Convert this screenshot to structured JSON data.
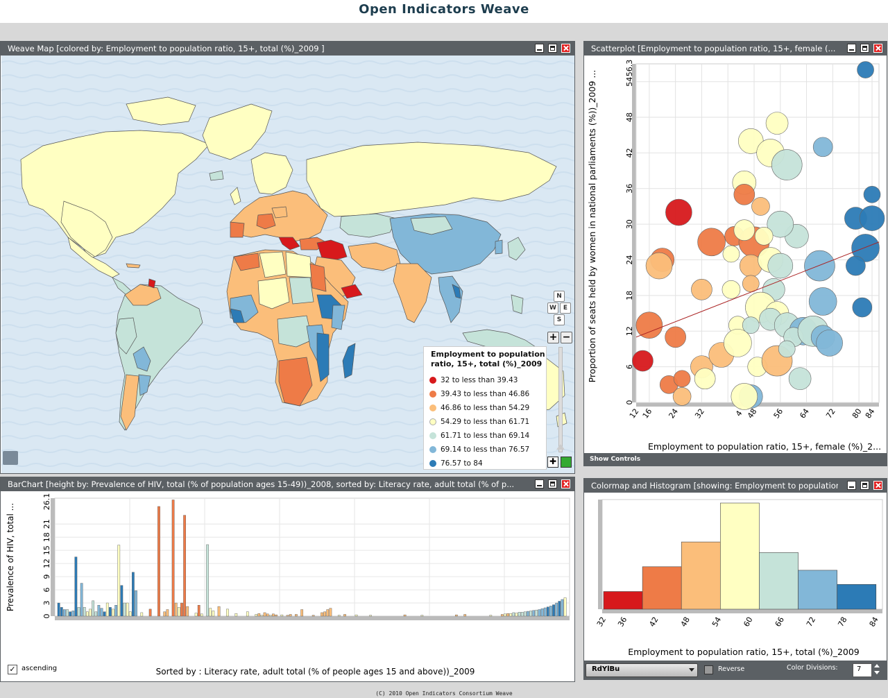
{
  "app": {
    "title": "Open Indicators Weave",
    "footer": "(C) 2010 Open Indicators Consortium Weave"
  },
  "colors": {
    "c1": "#d7191c",
    "c2": "#ee7b47",
    "c3": "#fbbe7a",
    "c4": "#ffffc2",
    "c5": "#c5e3d9",
    "c6": "#82b7d8",
    "c7": "#2c7bb6"
  },
  "map": {
    "title": "Weave Map [colored by: Employment to population ratio, 15+, total (%)_2009 ]",
    "legend_title": "Employment to population ratio, 15+, total (%)_2009",
    "legend": [
      "32 to less than 39.43",
      "39.43 to less than 46.86",
      "46.86 to less than 54.29",
      "54.29 to less than 61.71",
      "61.71 to less than 69.14",
      "69.14 to less than 76.57",
      "76.57 to 84"
    ],
    "nav": {
      "n": "N",
      "w": "W",
      "e": "E",
      "s": "S"
    }
  },
  "scatter": {
    "title": "Scatterplot [Employment to population ratio, 15+, female (...",
    "xlabel": "Employment to population ratio, 15+, female (%)_2...",
    "ylabel": "Proportion of seats held by women in national parliaments (%))_2009 ...",
    "xticks": [
      "12",
      "16",
      "24",
      "32",
      "4",
      "48",
      "56",
      "64",
      "72",
      "80",
      "84"
    ],
    "yticks": [
      "0",
      "6",
      "12",
      "18",
      "24",
      "30",
      "36",
      "42",
      "48",
      "54",
      "56.3"
    ],
    "show_controls": "Show Controls"
  },
  "bar": {
    "title": "BarChart [height by: Prevalence of HIV, total (% of population ages 15-49))_2008, sorted by: Literacy rate, adult total (% of p...",
    "ylabel": "Prevalence of HIV, total ...",
    "yticks": [
      "0",
      "3",
      "6",
      "9",
      "12",
      "15",
      "18",
      "21",
      "26.1"
    ],
    "sort_label": "Sorted by : Literacy rate, adult total (% of people ages 15 and above))_2009",
    "ascending_label": "ascending"
  },
  "hist": {
    "title": "Colormap and Histogram [showing: Employment to population ratio, 15+, total (%)_2009]",
    "xlabel": "Employment to population ratio, 15+, total (%)_2009",
    "xticks": [
      "32",
      "36",
      "42",
      "48",
      "54",
      "60",
      "66",
      "72",
      "78",
      "84"
    ],
    "colormap": "RdYlBu",
    "reverse_label": "Reverse",
    "divisions_label": "Color Divisions:",
    "divisions_value": "7"
  },
  "chart_data": [
    {
      "type": "bar",
      "title": "",
      "xlabel": "Employment to population ratio, 15+, total (%)_2009",
      "categories": [
        "32-39.43",
        "39.43-46.86",
        "46.86-54.29",
        "54.29-61.71",
        "61.71-69.14",
        "69.14-76.57",
        "76.57-84"
      ],
      "values": [
        5,
        12,
        19,
        30,
        16,
        11,
        7
      ]
    },
    {
      "type": "scatter",
      "xlabel": "Employment to population ratio, 15+, female (%)_2...",
      "ylabel": "Proportion of seats held by women in national parliaments (%))_2009 ...",
      "xlim": [
        12,
        84
      ],
      "ylim": [
        0,
        56.3
      ],
      "points": [
        {
          "x": 82,
          "y": 56,
          "c": 7
        },
        {
          "x": 55,
          "y": 47,
          "c": 4
        },
        {
          "x": 47,
          "y": 44,
          "c": 4
        },
        {
          "x": 53,
          "y": 42,
          "c": 4
        },
        {
          "x": 69,
          "y": 43,
          "c": 6
        },
        {
          "x": 58,
          "y": 40,
          "c": 5
        },
        {
          "x": 45,
          "y": 37,
          "c": 4
        },
        {
          "x": 25,
          "y": 32,
          "c": 1
        },
        {
          "x": 45,
          "y": 35,
          "c": 2
        },
        {
          "x": 50,
          "y": 33,
          "c": 3
        },
        {
          "x": 84,
          "y": 35,
          "c": 7
        },
        {
          "x": 79,
          "y": 31,
          "c": 7
        },
        {
          "x": 84,
          "y": 31,
          "c": 7
        },
        {
          "x": 35,
          "y": 27,
          "c": 2
        },
        {
          "x": 42,
          "y": 28,
          "c": 2
        },
        {
          "x": 48,
          "y": 27,
          "c": 2
        },
        {
          "x": 61,
          "y": 28,
          "c": 5
        },
        {
          "x": 56,
          "y": 30,
          "c": 5
        },
        {
          "x": 45,
          "y": 29,
          "c": 4
        },
        {
          "x": 51,
          "y": 28,
          "c": 4
        },
        {
          "x": 41,
          "y": 25,
          "c": 4
        },
        {
          "x": 47,
          "y": 23,
          "c": 3
        },
        {
          "x": 53,
          "y": 24,
          "c": 4
        },
        {
          "x": 82,
          "y": 26,
          "c": 7
        },
        {
          "x": 79,
          "y": 23,
          "c": 7
        },
        {
          "x": 68,
          "y": 23,
          "c": 6
        },
        {
          "x": 20,
          "y": 24,
          "c": 2
        },
        {
          "x": 19,
          "y": 23,
          "c": 3
        },
        {
          "x": 32,
          "y": 19,
          "c": 3
        },
        {
          "x": 41,
          "y": 19,
          "c": 4
        },
        {
          "x": 47,
          "y": 20,
          "c": 3
        },
        {
          "x": 54,
          "y": 19,
          "c": 5
        },
        {
          "x": 56,
          "y": 23,
          "c": 5
        },
        {
          "x": 69,
          "y": 17,
          "c": 6
        },
        {
          "x": 81,
          "y": 16,
          "c": 7
        },
        {
          "x": 50,
          "y": 16,
          "c": 4
        },
        {
          "x": 55,
          "y": 15,
          "c": 4
        },
        {
          "x": 16,
          "y": 13,
          "c": 2
        },
        {
          "x": 24,
          "y": 11,
          "c": 2
        },
        {
          "x": 43,
          "y": 13,
          "c": 4
        },
        {
          "x": 47,
          "y": 13,
          "c": 5
        },
        {
          "x": 53,
          "y": 14,
          "c": 5
        },
        {
          "x": 58,
          "y": 13,
          "c": 5
        },
        {
          "x": 63,
          "y": 12,
          "c": 6
        },
        {
          "x": 60,
          "y": 11,
          "c": 5
        },
        {
          "x": 66,
          "y": 12,
          "c": 5
        },
        {
          "x": 69,
          "y": 11,
          "c": 6
        },
        {
          "x": 71,
          "y": 10,
          "c": 6
        },
        {
          "x": 14,
          "y": 7,
          "c": 1
        },
        {
          "x": 22,
          "y": 3,
          "c": 2
        },
        {
          "x": 26,
          "y": 4,
          "c": 2
        },
        {
          "x": 32,
          "y": 6,
          "c": 3
        },
        {
          "x": 38,
          "y": 8,
          "c": 3
        },
        {
          "x": 43,
          "y": 10,
          "c": 4
        },
        {
          "x": 49,
          "y": 6,
          "c": 4
        },
        {
          "x": 55,
          "y": 7,
          "c": 3
        },
        {
          "x": 47,
          "y": 1,
          "c": 6
        },
        {
          "x": 45,
          "y": 1,
          "c": 4
        },
        {
          "x": 33,
          "y": 4,
          "c": 4
        },
        {
          "x": 26,
          "y": 1,
          "c": 3
        },
        {
          "x": 58,
          "y": 9,
          "c": 5
        },
        {
          "x": 62,
          "y": 4,
          "c": 5
        }
      ],
      "trendline": [
        [
          12,
          11
        ],
        [
          84,
          27
        ]
      ]
    },
    {
      "type": "bar",
      "ylabel": "Prevalence of HIV, total ...",
      "ylim": [
        0,
        26.1
      ],
      "values": [
        3,
        2,
        1.5,
        1.5,
        1,
        1.2,
        13.5,
        2,
        7.5,
        2,
        1,
        1.6,
        3.5,
        1,
        2.5,
        1.8,
        1,
        3,
        2,
        1.6,
        2.5,
        16.2,
        7,
        3,
        3,
        1,
        10,
        5.8,
        0,
        0.8,
        0,
        0,
        1.6,
        0,
        0,
        25,
        0,
        1,
        1.5,
        0,
        26.5,
        3,
        2,
        3,
        23,
        2.2,
        0,
        0,
        0.7,
        2.5,
        0.5,
        0,
        16.3,
        1.8,
        1.2,
        0,
        2.2,
        0,
        0,
        1.6,
        0,
        0,
        0.6,
        0,
        0,
        0,
        1,
        0,
        0,
        0.4,
        0.6,
        0.2,
        0.8,
        0.5,
        0.2,
        0.5,
        0.3,
        0,
        0.3,
        0,
        0.2,
        0.4,
        0,
        0.4,
        0,
        1.5,
        0,
        0,
        0,
        0.2,
        0,
        0,
        0.8,
        1,
        1.5,
        1.8,
        0,
        0,
        0.2,
        0,
        0.4,
        0,
        0,
        0,
        0.3,
        0,
        0,
        0,
        0,
        0.2,
        0,
        0,
        0,
        0,
        0,
        0,
        0,
        0,
        0,
        0,
        0,
        0.3,
        0,
        0,
        0,
        0,
        0,
        0.2,
        0,
        0,
        0,
        0,
        0,
        0,
        0,
        0,
        0,
        0,
        0,
        0.3,
        0,
        0,
        0.4,
        0,
        0,
        0,
        0,
        0,
        0,
        0,
        0,
        0.2,
        0,
        0,
        0,
        0.4,
        0.5,
        0.6,
        0.6,
        0.8,
        0.7,
        0.9,
        0.9,
        1,
        1.1,
        1.2,
        1.3,
        1.4,
        1.5,
        1.7,
        1.9,
        2.1,
        2.3,
        2.6,
        3.0,
        3.4,
        3.8,
        4.2
      ],
      "colors": [
        7,
        7,
        6,
        5,
        7,
        6,
        7,
        5,
        6,
        5,
        4,
        4,
        5,
        5,
        6,
        6,
        7,
        4,
        7,
        4,
        6,
        4,
        7,
        5,
        4,
        4,
        7,
        6,
        0,
        4,
        0,
        0,
        2,
        0,
        0,
        2,
        0,
        3,
        3,
        0,
        2,
        3,
        4,
        2,
        2,
        3,
        0,
        0,
        4,
        2,
        4,
        0,
        5,
        4,
        4,
        0,
        3,
        0,
        0,
        4,
        0,
        0,
        4,
        0,
        0,
        0,
        4,
        0,
        0,
        4,
        3,
        4,
        3,
        3,
        4,
        3,
        3,
        0,
        4,
        0,
        3,
        3,
        0,
        3,
        0,
        3,
        0,
        0,
        0,
        3,
        0,
        0,
        3,
        3,
        3,
        3,
        0,
        0,
        4,
        0,
        3,
        0,
        0,
        0,
        4,
        0,
        0,
        0,
        0,
        4,
        0,
        0,
        0,
        0,
        0,
        0,
        0,
        0,
        0,
        0,
        0,
        3,
        0,
        0,
        0,
        0,
        0,
        4,
        0,
        0,
        0,
        0,
        0,
        0,
        0,
        0,
        0,
        0,
        0,
        3,
        0,
        0,
        3,
        0,
        0,
        0,
        0,
        0,
        0,
        0,
        0,
        4,
        0,
        0,
        0,
        3,
        4,
        3,
        4,
        5,
        4,
        5,
        5,
        5,
        6,
        5,
        6,
        5,
        6,
        6,
        6,
        7,
        6,
        7,
        6,
        7,
        6
      ]
    }
  ]
}
